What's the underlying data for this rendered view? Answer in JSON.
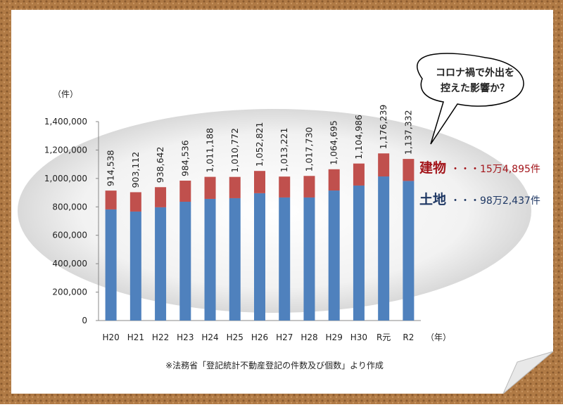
{
  "chart_data": {
    "type": "stacked-bar",
    "y_unit_label": "（件）",
    "x_unit_label": "（年）",
    "categories": [
      "H20",
      "H21",
      "H22",
      "H23",
      "H24",
      "H25",
      "H26",
      "H27",
      "H28",
      "H29",
      "H30",
      "R元",
      "R2"
    ],
    "series": [
      {
        "name": "土地",
        "color": "#4f81bd",
        "values": [
          782000,
          767000,
          797000,
          836000,
          856000,
          861000,
          896000,
          866000,
          866000,
          915000,
          950000,
          1014000,
          982437
        ]
      },
      {
        "name": "建物",
        "color": "#c0504d",
        "values": [
          132538,
          136112,
          141642,
          148536,
          155188,
          149772,
          156821,
          147221,
          151730,
          149695,
          154986,
          162239,
          154895
        ]
      }
    ],
    "totals": [
      914538,
      903112,
      938642,
      984536,
      1011188,
      1010772,
      1052821,
      1013221,
      1017730,
      1064695,
      1104986,
      1176239,
      1137332
    ],
    "totals_labels": [
      "914,538",
      "903,112",
      "938,642",
      "984,536",
      "1,011,188",
      "1,010,772",
      "1,052,821",
      "1,013,221",
      "1,017,730",
      "1,064,695",
      "1,104,986",
      "1,176,239",
      "1,137,332"
    ],
    "ylim": [
      0,
      1400000
    ],
    "yticks": [
      0,
      {
        "value": 200000,
        "label": "200,000"
      },
      {
        "value": 400000,
        "label": "400,000"
      },
      {
        "value": 600000,
        "label": "600,000"
      },
      {
        "value": 800000,
        "label": "800,000"
      },
      {
        "value": 1000000,
        "label": "1,000,000"
      },
      {
        "value": 1200000,
        "label": "1,200,000"
      },
      {
        "value": 1400000,
        "label": "1,400,000"
      }
    ],
    "annotations": {
      "building": "・・・15万4,895件",
      "land": "・・・98万2,437件"
    },
    "callout": [
      "コロナ禍で外出を",
      "控えた影響か？"
    ],
    "source": "※法務省「登記統計不動産登記の件数及び個数」より作成"
  }
}
